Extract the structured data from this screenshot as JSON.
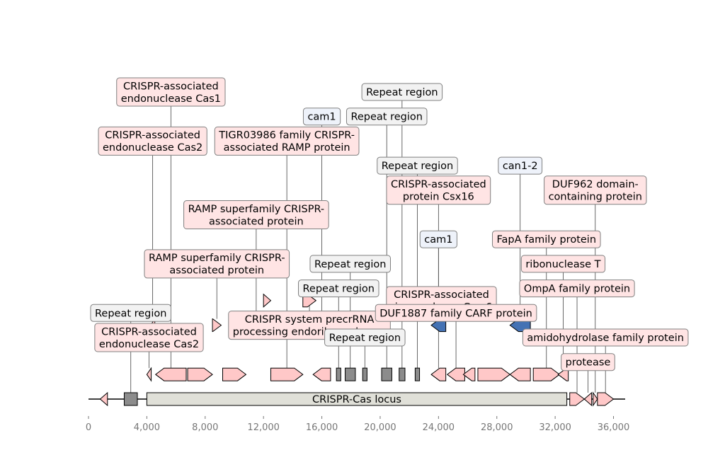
{
  "title": "",
  "sequence": {
    "start": 0,
    "end": 36800
  },
  "axis": {
    "min": 0,
    "max": 36800,
    "ticks": [
      0,
      4000,
      8000,
      12000,
      16000,
      20000,
      24000,
      28000,
      32000,
      36000
    ],
    "tick_labels": [
      "0",
      "4,000",
      "8,000",
      "12,000",
      "16,000",
      "20,000",
      "24,000",
      "28,000",
      "32,000",
      "36,000"
    ]
  },
  "colors": {
    "gene": "#ffc8c8",
    "repeat": "#8c8c8c",
    "cam": "#4472b4",
    "locus": "#e0e0d8",
    "label_gene": "#ffe4e4",
    "label_repeat": "#f2f2f2",
    "label_cam": "#eef2fa",
    "stroke": "#000000",
    "leader": "#444444",
    "label_border": "#808080",
    "axis_text": "#777777"
  },
  "locus": {
    "label": "CRISPR-Cas locus",
    "start": 4000,
    "end": 32800
  },
  "features": [
    {
      "name": "feat-gene-01",
      "kind": "gene",
      "start": 800,
      "end": 1300,
      "strand": -1,
      "row": 0,
      "label_lines": []
    },
    {
      "name": "feat-repeat-01",
      "kind": "repeat",
      "start": 2450,
      "end": 3350,
      "strand": 0,
      "row": 0,
      "label_lines": [
        "Repeat region"
      ],
      "label_row": 9
    },
    {
      "name": "feat-gene-02",
      "kind": "gene",
      "start": 4000,
      "end": 4300,
      "strand": -1,
      "row": 1,
      "label_lines": [
        "CRISPR-associated",
        "endonuclease Cas2"
      ],
      "label_row": 10
    },
    {
      "name": "feat-gene-03",
      "kind": "gene",
      "start": 4250,
      "end": 4550,
      "strand": -1,
      "row": 3,
      "label_lines": [
        "CRISPR-associated",
        "endonuclease Cas2"
      ],
      "label_row": 2
    },
    {
      "name": "feat-gene-04",
      "kind": "gene",
      "start": 4600,
      "end": 6700,
      "strand": -1,
      "row": 1,
      "label_lines": [
        "CRISPR-associated",
        "endonuclease Cas1"
      ],
      "label_row": 0
    },
    {
      "name": "feat-gene-05",
      "kind": "gene",
      "start": 6800,
      "end": 8500,
      "strand": 1,
      "row": 1,
      "label_lines": []
    },
    {
      "name": "feat-gene-06",
      "kind": "gene",
      "start": 8500,
      "end": 9100,
      "strand": 1,
      "row": 3,
      "label_lines": [
        "RAMP superfamily CRISPR-",
        "associated protein"
      ],
      "label_row": 7
    },
    {
      "name": "feat-gene-07",
      "kind": "gene",
      "start": 9200,
      "end": 10800,
      "strand": 1,
      "row": 1,
      "label_lines": []
    },
    {
      "name": "feat-gene-08",
      "kind": "gene",
      "start": 10800,
      "end": 12200,
      "strand": 1,
      "row": 3,
      "label_lines": [
        "RAMP superfamily CRISPR-",
        "associated protein"
      ],
      "label_row": 5
    },
    {
      "name": "feat-gene-09",
      "kind": "gene",
      "start": 12000,
      "end": 12500,
      "strand": 1,
      "row": 4,
      "label_lines": []
    },
    {
      "name": "feat-gene-10",
      "kind": "gene",
      "start": 12500,
      "end": 14700,
      "strand": 1,
      "row": 1,
      "label_lines": [
        "TIGR03986 family CRISPR-",
        "associated RAMP protein"
      ],
      "label_row": 2
    },
    {
      "name": "feat-gene-11",
      "kind": "gene",
      "start": 14700,
      "end": 15600,
      "strand": 1,
      "row": 4,
      "label_lines": [
        "CRISPR system precrRNA",
        "processing endoribonucleas..."
      ],
      "label_row": 9.5
    },
    {
      "name": "feat-gene-12",
      "kind": "gene",
      "start": 15400,
      "end": 16600,
      "strand": -1,
      "row": 1,
      "label_lines": []
    },
    {
      "name": "feat-cam-01",
      "kind": "cam",
      "start": 15400,
      "end": 16600,
      "strand": -1,
      "row": 3,
      "label_lines": [
        "cam1"
      ],
      "label_row": 1
    },
    {
      "name": "feat-repeat-02",
      "kind": "repeat",
      "start": 17000,
      "end": 17300,
      "strand": 0,
      "row": 1,
      "label_lines": [
        "Repeat region"
      ],
      "label_row": 8
    },
    {
      "name": "feat-repeat-03",
      "kind": "repeat",
      "start": 17600,
      "end": 18300,
      "strand": 0,
      "row": 1,
      "label_lines": [
        "Repeat region"
      ],
      "label_row": 7
    },
    {
      "name": "feat-repeat-04",
      "kind": "repeat",
      "start": 18800,
      "end": 19100,
      "strand": 0,
      "row": 1,
      "label_lines": [
        "Repeat region"
      ],
      "label_row": 10
    },
    {
      "name": "feat-repeat-05",
      "kind": "repeat",
      "start": 20100,
      "end": 20800,
      "strand": 0,
      "row": 1,
      "label_lines": [
        "Repeat region"
      ],
      "label_row": 1
    },
    {
      "name": "feat-repeat-06",
      "kind": "repeat",
      "start": 21300,
      "end": 21700,
      "strand": 0,
      "row": 1,
      "label_lines": [
        "Repeat region"
      ],
      "label_row": 0
    },
    {
      "name": "feat-repeat-07",
      "kind": "repeat",
      "start": 22400,
      "end": 22700,
      "strand": 0,
      "row": 1,
      "label_lines": [
        "Repeat region"
      ],
      "label_row": 3
    },
    {
      "name": "feat-gene-13",
      "kind": "gene",
      "start": 23500,
      "end": 24500,
      "strand": -1,
      "row": 1,
      "label_lines": [
        "CRISPR-associated",
        "protein Csx16"
      ],
      "label_row": 4
    },
    {
      "name": "feat-cam-02",
      "kind": "cam",
      "start": 23500,
      "end": 24500,
      "strand": -1,
      "row": 3,
      "label_lines": [
        "cam1"
      ],
      "label_row": 6
    },
    {
      "name": "feat-gene-14",
      "kind": "gene",
      "start": 24000,
      "end": 24400,
      "strand": -1,
      "row": 4,
      "label_lines": [
        "CRISPR-associated",
        "ring nuclease Csm6"
      ],
      "label_row": 8.5
    },
    {
      "name": "feat-gene-15",
      "kind": "gene",
      "start": 24600,
      "end": 25800,
      "strand": -1,
      "row": 1,
      "label_lines": [
        "DUF1887 family CARF protein"
      ],
      "label_row": 9
    },
    {
      "name": "feat-gene-16",
      "kind": "gene",
      "start": 25700,
      "end": 26500,
      "strand": -1,
      "row": 1,
      "label_lines": []
    },
    {
      "name": "feat-gene-17",
      "kind": "gene",
      "start": 26700,
      "end": 28900,
      "strand": 1,
      "row": 1,
      "label_lines": []
    },
    {
      "name": "feat-gene-18",
      "kind": "gene",
      "start": 28900,
      "end": 30300,
      "strand": -1,
      "row": 1,
      "label_lines": []
    },
    {
      "name": "feat-cam-03",
      "kind": "cam",
      "start": 28900,
      "end": 30300,
      "strand": -1,
      "row": 3,
      "label_lines": [
        "can1-2"
      ],
      "label_row": 3
    },
    {
      "name": "feat-gene-19",
      "kind": "gene",
      "start": 30500,
      "end": 32300,
      "strand": 1,
      "row": 1,
      "label_lines": [
        "FapA family protein"
      ],
      "label_row": 6
    },
    {
      "name": "feat-gene-20",
      "kind": "gene",
      "start": 32200,
      "end": 32900,
      "strand": -1,
      "row": 1,
      "label_lines": [
        "ribonuclease T"
      ],
      "label_row": 7
    },
    {
      "name": "feat-gene-21",
      "kind": "gene",
      "start": 33000,
      "end": 34000,
      "strand": 1,
      "row": 0,
      "label_lines": [
        "OmpA family protein"
      ],
      "label_row": 8
    },
    {
      "name": "feat-gene-22",
      "kind": "gene",
      "start": 34000,
      "end": 34500,
      "strand": -1,
      "row": 0,
      "label_lines": [
        "protease"
      ],
      "label_row": 11
    },
    {
      "name": "feat-gene-23",
      "kind": "gene",
      "start": 34600,
      "end": 34900,
      "strand": 1,
      "row": 0,
      "label_lines": [
        "DUF962 domain-",
        "containing protein"
      ],
      "label_row": 4
    },
    {
      "name": "feat-gene-24",
      "kind": "gene",
      "start": 34900,
      "end": 36000,
      "strand": 1,
      "row": 0,
      "label_lines": [
        "amidohydrolase family protein"
      ],
      "label_row": 10
    }
  ]
}
